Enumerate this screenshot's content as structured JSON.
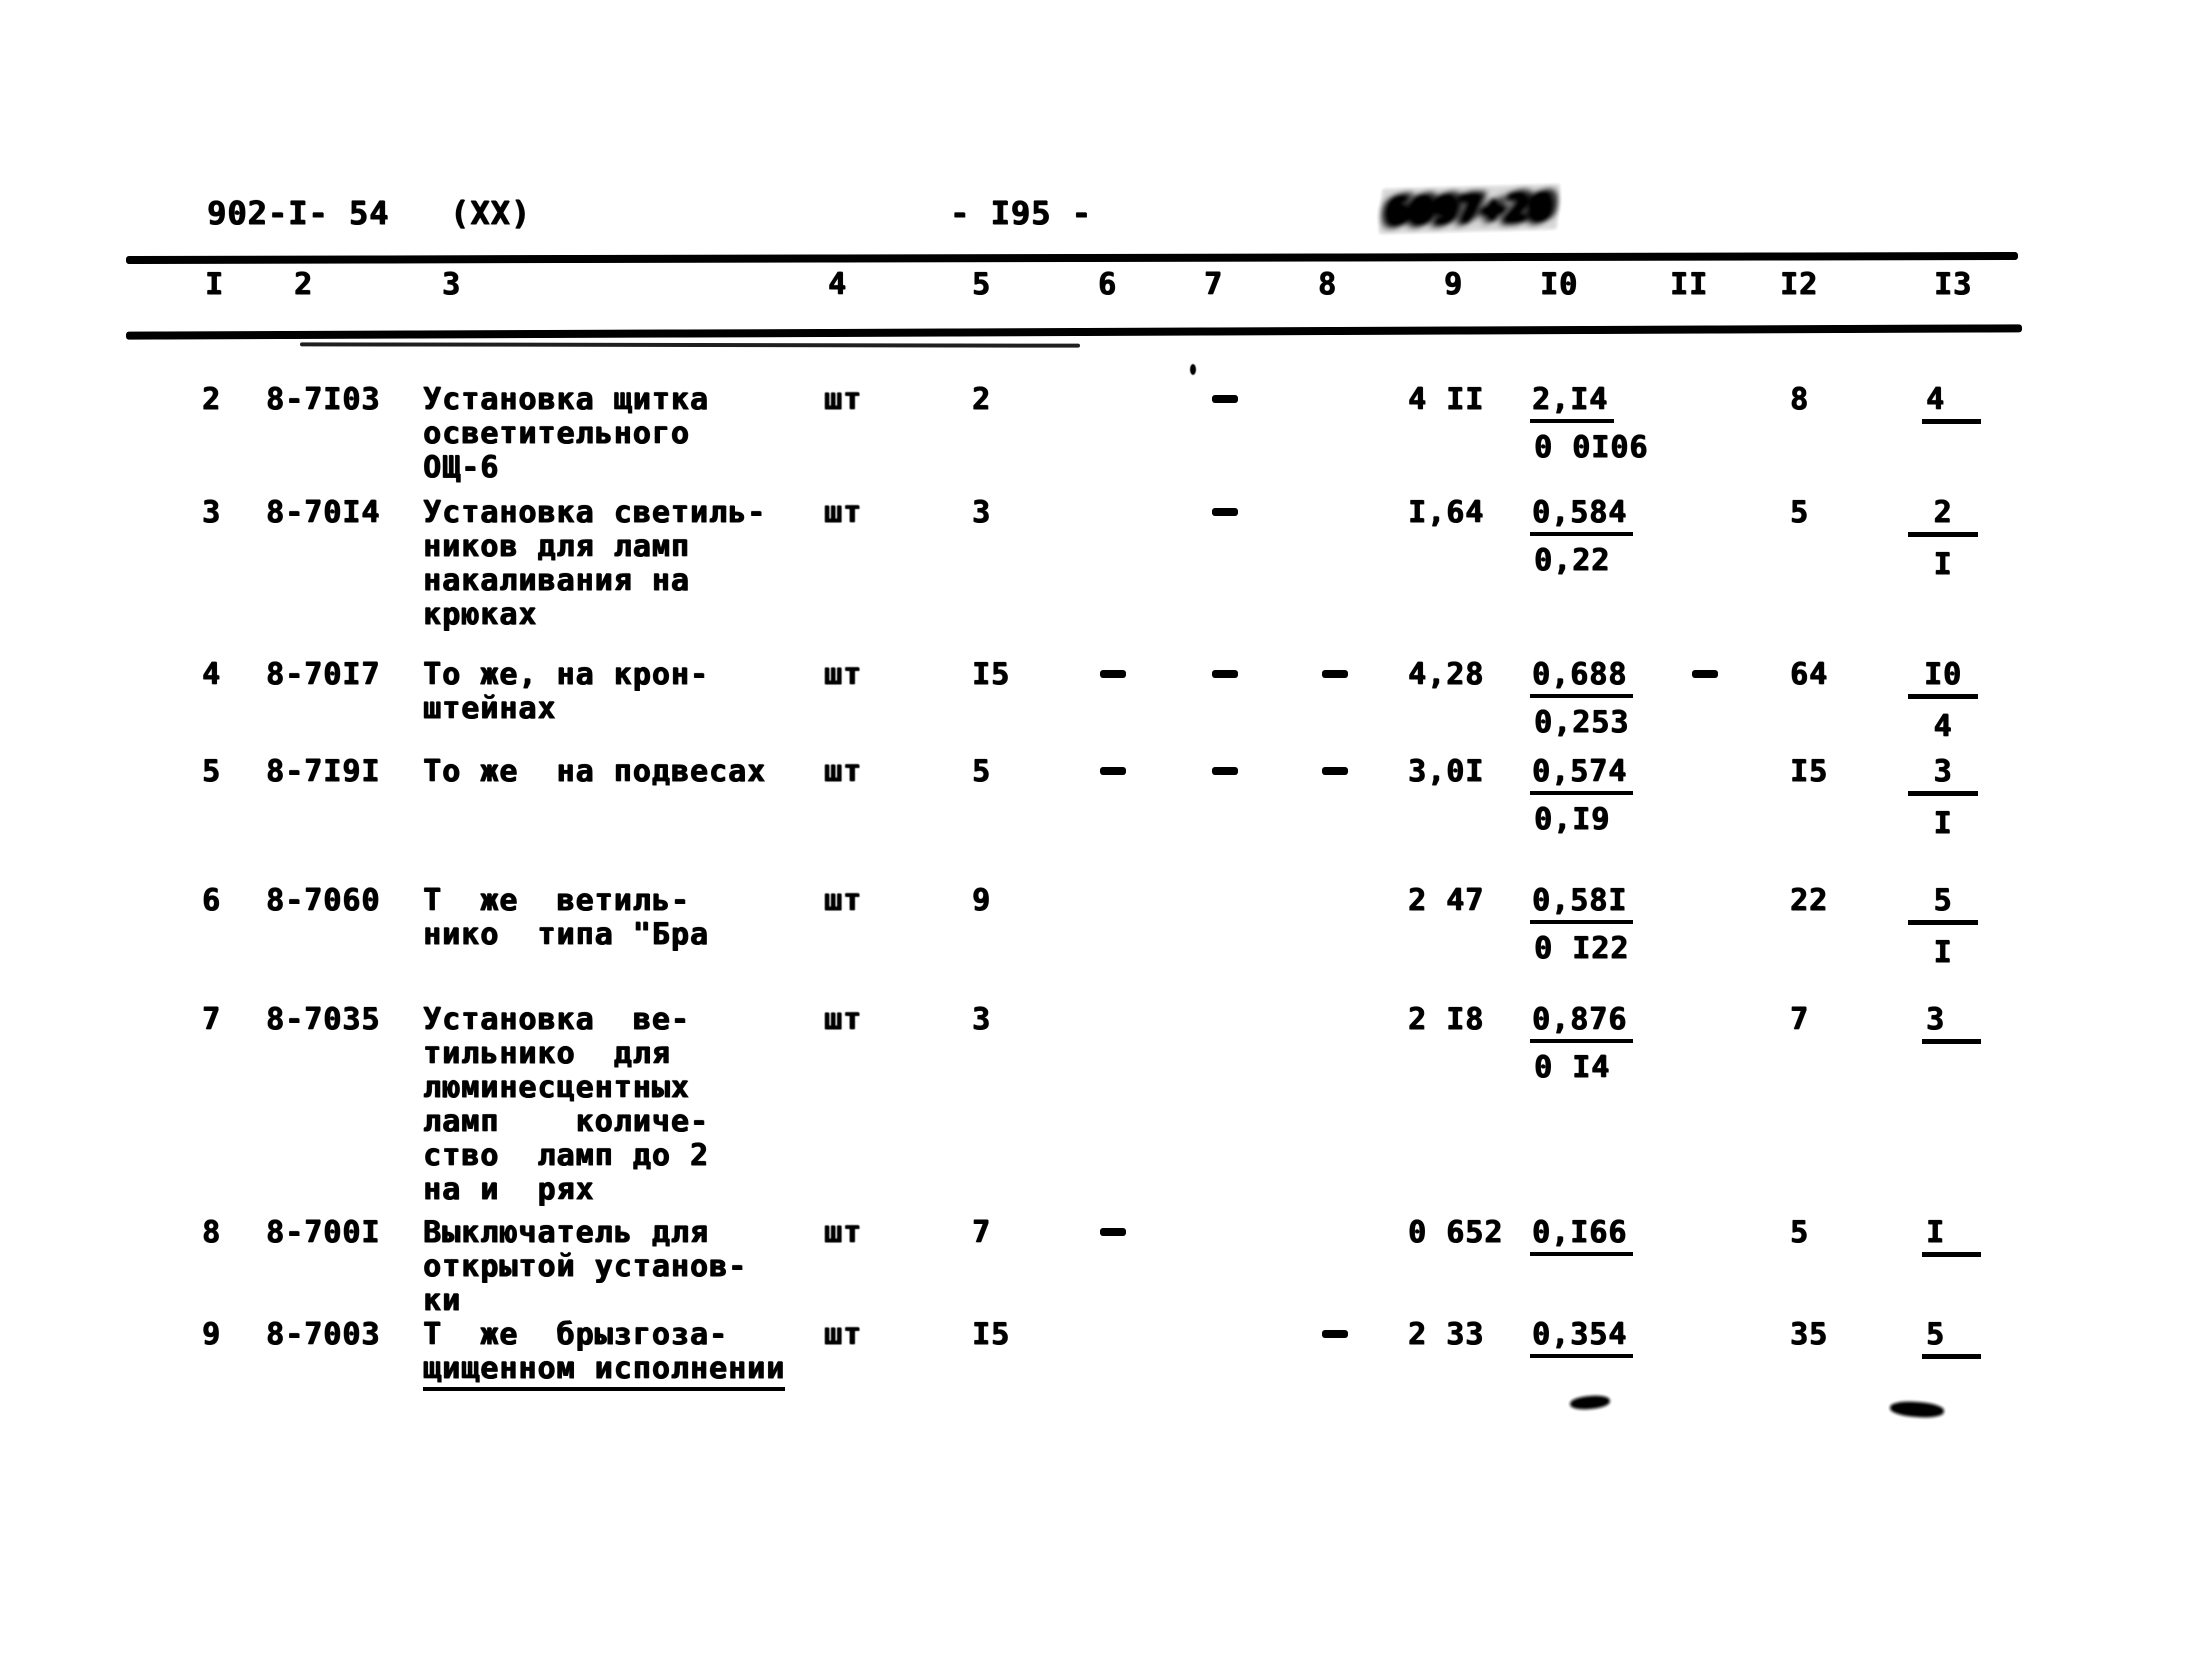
{
  "header": {
    "doc_number": "902-I- 54",
    "copy_mark": "(XX)",
    "page_number": "- I95 -",
    "stamp_text": "6097+20"
  },
  "table": {
    "column_numbers": [
      "I",
      "2",
      "3",
      "4",
      "5",
      "6",
      "7",
      "8",
      "9",
      "I0",
      "II",
      "I2",
      "I3"
    ],
    "rows": [
      {
        "num": "2",
        "code": "8-7I03",
        "desc": [
          {
            "t": "Установка щитка"
          },
          {
            "t": "осветительного"
          },
          {
            "t": "ОЩ-6"
          }
        ],
        "unit": "шт",
        "qty": "2",
        "c7": "-",
        "c9": "4 II",
        "c10_top": "2,I4",
        "c10_bot": "0 0I06",
        "c12": "8",
        "c13_top": "4",
        "c13_ext": true
      },
      {
        "num": "3",
        "code": "8-70I4",
        "desc": [
          {
            "t": "Установка светиль-"
          },
          {
            "t": "ников для ламп"
          },
          {
            "t": "накаливания на"
          },
          {
            "t": "крюках"
          }
        ],
        "unit": "шт",
        "qty": "3",
        "c7": "-",
        "c9": "I,64",
        "c10_top": "0,584",
        "c10_bot": "0,22",
        "c12": "5",
        "c13_top": "2",
        "c13_bot": "I"
      },
      {
        "num": "4",
        "code": "8-70I7",
        "desc": [
          {
            "t": "То же, на крон-"
          },
          {
            "t": "штейнах"
          }
        ],
        "unit": "шт",
        "qty": "I5",
        "c6": "-",
        "c7": "-",
        "c8": "-",
        "c9": "4,28",
        "c10_top": "0,688",
        "c10_bot": "0,253",
        "c11": "-",
        "c12": "64",
        "c13_top": "I0",
        "c13_bot": "4"
      },
      {
        "num": "5",
        "code": "8-7I9I",
        "desc": [
          {
            "t": "То же  на подвесах"
          }
        ],
        "unit": "шт",
        "qty": "5",
        "c6": "-",
        "c7": "-",
        "c8": "-",
        "c9": "3,0I",
        "c10_top": "0,574",
        "c10_bot": "0,I9",
        "c12": "I5",
        "c13_top": "3",
        "c13_bot": "I"
      },
      {
        "num": "6",
        "code": "8-7060",
        "desc": [
          {
            "t": "Т  же  ветиль-"
          },
          {
            "t": "нико  типа \"Бра"
          }
        ],
        "unit": "шт",
        "qty": "9",
        "c9": "2 47",
        "c10_top": "0,58I",
        "c10_bot": "0 I22",
        "c12": "22",
        "c13_top": "5",
        "c13_bot": "I"
      },
      {
        "num": "7",
        "code": "8-7035",
        "desc": [
          {
            "t": "Установка  ве-"
          },
          {
            "t": "тильнико  для"
          },
          {
            "t": "люминесцентных"
          },
          {
            "t": "ламп    количе-"
          },
          {
            "t": "ство  ламп до 2"
          },
          {
            "t": "на и  рях"
          }
        ],
        "unit": "шт",
        "qty": "3",
        "c9": "2 I8",
        "c10_top": "0,876",
        "c10_bot": "0 I4",
        "c12": "7",
        "c13_top": "3",
        "c13_ext": true
      },
      {
        "num": "8",
        "code": "8-700I",
        "desc": [
          {
            "t": "Выключатель для"
          },
          {
            "t": "открытой установ-"
          },
          {
            "t": "ки"
          }
        ],
        "unit": "шт",
        "qty": "7",
        "c6": "-",
        "c9": "0 652",
        "c10_top": "0,I66",
        "c12": "5",
        "c13_top": "I",
        "c13_ext": true
      },
      {
        "num": "9",
        "code": "8-7003",
        "desc": [
          {
            "t": "Т  же  брызгоза-"
          },
          {
            "t": "щищенном исполнении",
            "u": true
          }
        ],
        "unit": "шт",
        "qty": "I5",
        "c8": "-",
        "c9": "2 33",
        "c10_top": "0,354",
        "c12": "35",
        "c13_top": "5",
        "c13_ext": true
      }
    ]
  }
}
